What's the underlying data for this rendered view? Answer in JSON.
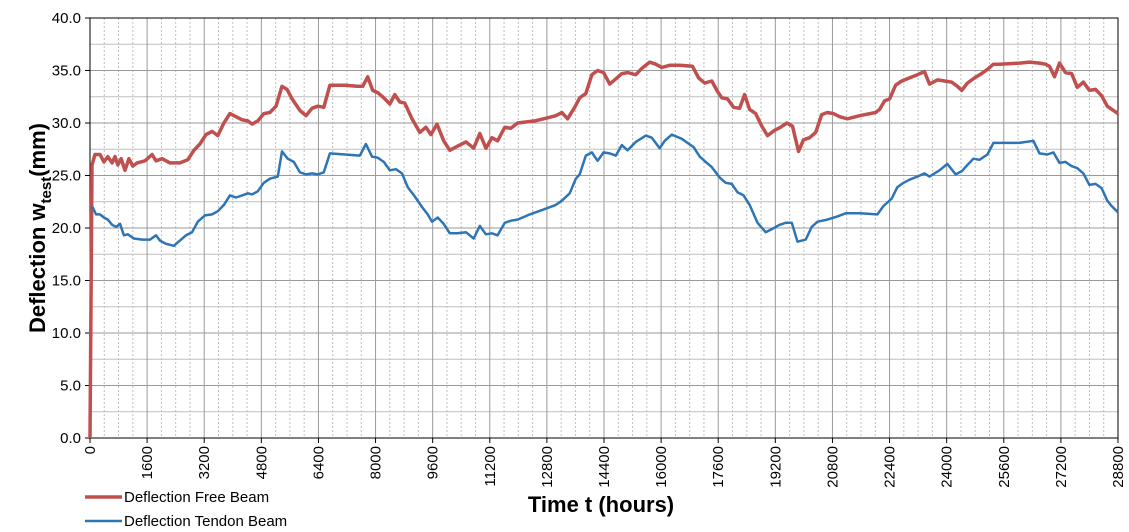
{
  "chart_data": {
    "type": "line",
    "x_label": "Time t (hours)",
    "y_label": {
      "main": "Deflection w",
      "sub": "test",
      "unit": "(mm)"
    },
    "xlim": [
      0,
      28800
    ],
    "ylim": [
      0,
      40
    ],
    "xticks": [
      0,
      1600,
      3200,
      4800,
      6400,
      8000,
      9600,
      11200,
      12800,
      14400,
      16000,
      17600,
      19200,
      20800,
      22400,
      24000,
      25600,
      27200,
      28800
    ],
    "yticks": [
      {
        "value": 0,
        "label": "0.0"
      },
      {
        "value": 5,
        "label": "5.0"
      },
      {
        "value": 10,
        "label": "10.0"
      },
      {
        "value": 15,
        "label": "15.0"
      },
      {
        "value": 20,
        "label": "20.0"
      },
      {
        "value": 25,
        "label": "25.0"
      },
      {
        "value": 30,
        "label": "30.0"
      },
      {
        "value": 35,
        "label": "35.0"
      },
      {
        "value": 40,
        "label": "40.0"
      }
    ],
    "xminorticks": [
      400,
      800,
      1200,
      2000,
      2400,
      2800,
      3600,
      4000,
      4400,
      5200,
      5600,
      6000,
      6800,
      7200,
      7600,
      8400,
      8800,
      9200,
      10000,
      10400,
      10800,
      11600,
      12000,
      12400,
      13200,
      13600,
      14000,
      14800,
      15200,
      15600,
      16400,
      16800,
      17200,
      18000,
      18400,
      18800,
      19600,
      20000,
      20400,
      21200,
      21600,
      22000,
      22800,
      23200,
      23600,
      24400,
      24800,
      25200,
      26000,
      26400,
      26800,
      27600,
      28000,
      28400
    ],
    "yminorticks": [
      2.5,
      7.5,
      12.5,
      17.5,
      22.5,
      27.5,
      32.5,
      37.5
    ],
    "grid": true,
    "legend": "bottom-left",
    "series": [
      {
        "name": "Deflection Free Beam",
        "color": "#c0504d",
        "x": [
          0,
          56,
          140,
          280,
          390,
          500,
          620,
          700,
          780,
          870,
          980,
          1090,
          1200,
          1320,
          1540,
          1740,
          1850,
          2020,
          2240,
          2520,
          2740,
          2910,
          3080,
          3250,
          3420,
          3580,
          3750,
          3920,
          4090,
          4260,
          4420,
          4540,
          4700,
          4870,
          5040,
          5210,
          5380,
          5520,
          5680,
          5880,
          6050,
          6220,
          6380,
          6550,
          6720,
          7140,
          7480,
          7640,
          7780,
          7920,
          8060,
          8230,
          8400,
          8540,
          8680,
          8820,
          9020,
          9240,
          9410,
          9550,
          9720,
          9910,
          10080,
          10300,
          10530,
          10750,
          10920,
          11090,
          11260,
          11420,
          11620,
          11790,
          11980,
          12460,
          12820,
          13050,
          13220,
          13380,
          13580,
          13720,
          13890,
          14060,
          14220,
          14390,
          14560,
          14730,
          14900,
          15060,
          15290,
          15460,
          15680,
          15850,
          16020,
          16240,
          16520,
          16880,
          17050,
          17220,
          17420,
          17580,
          17700,
          17860,
          18030,
          18200,
          18340,
          18480,
          18650,
          18820,
          18980,
          19180,
          19350,
          19520,
          19680,
          19850,
          19990,
          20160,
          20330,
          20500,
          20660,
          20830,
          21000,
          21220,
          21560,
          22010,
          22120,
          22260,
          22400,
          22570,
          22740,
          22960,
          23180,
          23380,
          23520,
          23740,
          23940,
          24140,
          24300,
          24420,
          24580,
          24780,
          24980,
          25140,
          25310,
          25480,
          26040,
          26320,
          26600,
          26770,
          26880,
          27020,
          27160,
          27330,
          27500,
          27660,
          27830,
          28000,
          28170,
          28340,
          28500,
          28670,
          28800
        ],
        "values": [
          0,
          26,
          27,
          27,
          26.3,
          26.8,
          26.2,
          26.8,
          26,
          26.6,
          25.5,
          26.6,
          25.9,
          26.2,
          26.4,
          27,
          26.4,
          26.6,
          26.2,
          26.2,
          26.5,
          27.4,
          28,
          28.9,
          29.2,
          28.8,
          30,
          30.9,
          30.6,
          30.3,
          30.2,
          29.9,
          30.2,
          30.9,
          31,
          31.6,
          33.5,
          33.2,
          32.2,
          31.2,
          30.7,
          31.4,
          31.6,
          31.5,
          33.6,
          33.6,
          33.5,
          33.5,
          34.4,
          33.1,
          32.9,
          32.4,
          31.8,
          32.7,
          32,
          31.9,
          30.4,
          29.1,
          29.6,
          28.9,
          29.9,
          28.3,
          27.4,
          27.8,
          28.2,
          27.6,
          29,
          27.6,
          28.6,
          28.3,
          29.6,
          29.5,
          30,
          30.2,
          30.5,
          30.7,
          31,
          30.4,
          31.5,
          32.4,
          32.8,
          34.6,
          35,
          34.8,
          33.7,
          34.2,
          34.7,
          34.8,
          34.6,
          35.2,
          35.8,
          35.6,
          35.3,
          35.5,
          35.5,
          35.4,
          34.3,
          33.8,
          34,
          33,
          32.4,
          32.3,
          31.5,
          31.4,
          32.7,
          31.3,
          30.9,
          29.7,
          28.8,
          29.3,
          29.6,
          30,
          29.7,
          27.3,
          28.4,
          28.6,
          29.1,
          30.8,
          31,
          30.9,
          30.6,
          30.4,
          30.7,
          31,
          31.3,
          32.1,
          32.3,
          33.6,
          34,
          34.3,
          34.6,
          34.9,
          33.7,
          34.1,
          34,
          33.9,
          33.5,
          33.1,
          33.8,
          34.3,
          34.7,
          35.1,
          35.6,
          35.6,
          35.7,
          35.8,
          35.7,
          35.6,
          35.4,
          34.4,
          35.7,
          34.8,
          34.7,
          33.4,
          33.9,
          33.1,
          33.2,
          32.6,
          31.6,
          31.2,
          30.9
        ]
      },
      {
        "name": "Deflection Tendon Beam",
        "color": "#2e75b6",
        "x": [
          56,
          170,
          280,
          390,
          500,
          620,
          730,
          840,
          950,
          1060,
          1230,
          1460,
          1680,
          1850,
          1960,
          2130,
          2350,
          2520,
          2690,
          2860,
          3020,
          3220,
          3420,
          3580,
          3750,
          3920,
          4090,
          4260,
          4420,
          4540,
          4700,
          4870,
          5040,
          5260,
          5380,
          5540,
          5710,
          5880,
          6050,
          6220,
          6380,
          6550,
          6720,
          7140,
          7560,
          7730,
          7900,
          8060,
          8230,
          8400,
          8570,
          8740,
          8900,
          9100,
          9300,
          9460,
          9580,
          9740,
          9910,
          10080,
          10300,
          10530,
          10750,
          10920,
          11090,
          11260,
          11420,
          11620,
          11790,
          11980,
          12320,
          12740,
          13050,
          13220,
          13440,
          13610,
          13720,
          13890,
          14060,
          14220,
          14390,
          14560,
          14730,
          14900,
          15060,
          15290,
          15570,
          15740,
          15960,
          16100,
          16300,
          16580,
          16740,
          16910,
          17080,
          17250,
          17420,
          17640,
          17810,
          17980,
          18140,
          18310,
          18480,
          18700,
          18930,
          19100,
          19320,
          19490,
          19660,
          19820,
          20050,
          20220,
          20380,
          20660,
          20940,
          21170,
          21560,
          22060,
          22230,
          22460,
          22620,
          22790,
          22960,
          23180,
          23380,
          23520,
          23800,
          24020,
          24250,
          24420,
          24580,
          24750,
          24920,
          25140,
          25310,
          25590,
          26040,
          26430,
          26600,
          26820,
          26990,
          27160,
          27330,
          27500,
          27660,
          27830,
          28000,
          28170,
          28340,
          28500,
          28620,
          28800
        ],
        "values": [
          22.1,
          21.3,
          21.3,
          21,
          20.8,
          20.3,
          20.1,
          20.4,
          19.3,
          19.4,
          19,
          18.9,
          18.9,
          19.3,
          18.8,
          18.5,
          18.3,
          18.8,
          19.3,
          19.6,
          20.6,
          21.2,
          21.3,
          21.6,
          22.2,
          23.1,
          22.9,
          23.1,
          23.3,
          23.2,
          23.5,
          24.3,
          24.7,
          24.9,
          27.3,
          26.6,
          26.3,
          25.3,
          25.1,
          25.2,
          25.1,
          25.3,
          27.1,
          27,
          26.9,
          28,
          26.8,
          26.7,
          26.3,
          25.5,
          25.6,
          25.2,
          23.9,
          23,
          22,
          21.3,
          20.6,
          21,
          20.4,
          19.5,
          19.5,
          19.6,
          19,
          20.2,
          19.4,
          19.5,
          19.3,
          20.5,
          20.7,
          20.8,
          21.3,
          21.8,
          22.2,
          22.6,
          23.3,
          24.7,
          25.1,
          26.9,
          27.2,
          26.4,
          27.2,
          27.1,
          26.9,
          27.9,
          27.4,
          28.2,
          28.8,
          28.6,
          27.6,
          28.3,
          28.9,
          28.5,
          28.1,
          27.7,
          26.8,
          26.3,
          25.8,
          24.8,
          24.3,
          24.2,
          23.4,
          23.1,
          22.2,
          20.5,
          19.6,
          19.9,
          20.3,
          20.5,
          20.5,
          18.7,
          18.9,
          20.1,
          20.6,
          20.8,
          21.1,
          21.4,
          21.4,
          21.3,
          22.1,
          22.8,
          23.9,
          24.3,
          24.6,
          24.9,
          25.2,
          24.9,
          25.5,
          26.1,
          25.1,
          25.4,
          26,
          26.6,
          26.5,
          27,
          28.1,
          28.1,
          28.1,
          28.3,
          27.1,
          27,
          27.2,
          26.2,
          26.3,
          25.9,
          25.7,
          25.2,
          24.1,
          24.2,
          23.8,
          22.6,
          22.1,
          21.5
        ]
      }
    ]
  }
}
